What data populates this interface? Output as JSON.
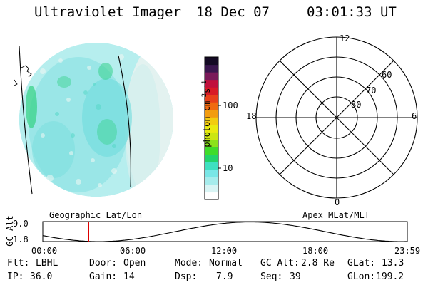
{
  "header": {
    "instrument": "Ultraviolet Imager",
    "date": "18 Dec 07",
    "time": "03:01:33 UT"
  },
  "colorbar": {
    "unit_label": "photon cm",
    "unit_exp1": "-2",
    "unit_mid": "s",
    "unit_exp2": "-1",
    "ticks": [
      {
        "label": "100",
        "value": 100
      },
      {
        "label": "10",
        "value": 10
      }
    ],
    "colors": [
      "#ffffff",
      "#d8f4f4",
      "#a6ecec",
      "#79e6e6",
      "#3ee0c0",
      "#22d36a",
      "#3fdc2a",
      "#8be21a",
      "#cce612",
      "#eaea10",
      "#f2cc10",
      "#f29c10",
      "#f06a10",
      "#e8401a",
      "#d81a26",
      "#c0103c",
      "#7a1a5a",
      "#3a164e",
      "#140a24"
    ]
  },
  "polar": {
    "mlt_labels": {
      "top": "12",
      "left": "18",
      "right": "6",
      "bottom": "0"
    },
    "lat_labels": [
      "60",
      "70",
      "80"
    ]
  },
  "orbit": {
    "geo_label": "Geographic Lat/Lon",
    "apex_label": "Apex MLat/MLT",
    "axis_title": "GC Alt",
    "y_max": "9.0",
    "y_min": "1.8",
    "y_range": [
      1.8,
      9.0
    ],
    "hours_range": [
      0,
      24
    ],
    "x_ticks": [
      "00:00",
      "06:00",
      "12:00",
      "18:00",
      "23:59"
    ],
    "current_hour": 3.0258,
    "marker_color": "#dd0000"
  },
  "info": {
    "flt_label": "Flt:",
    "flt_value": "LBHL",
    "ip_label": "IP:",
    "ip_value": "36.0",
    "door_label": "Door:",
    "door_value": "Open",
    "gain_label": "Gain:",
    "gain_value": "14",
    "mode_label": "Mode:",
    "mode_value": "Normal",
    "dsp_label": "Dsp:",
    "dsp_value": "7.9",
    "gcalt_label": "GC Alt:",
    "gcalt_value": "2.8 Re",
    "seq_label": "Seq:",
    "seq_value": "39",
    "glat_label": "GLat:",
    "glat_value": "13.3",
    "glon_label": "GLon:",
    "glon_value": "199.2"
  }
}
